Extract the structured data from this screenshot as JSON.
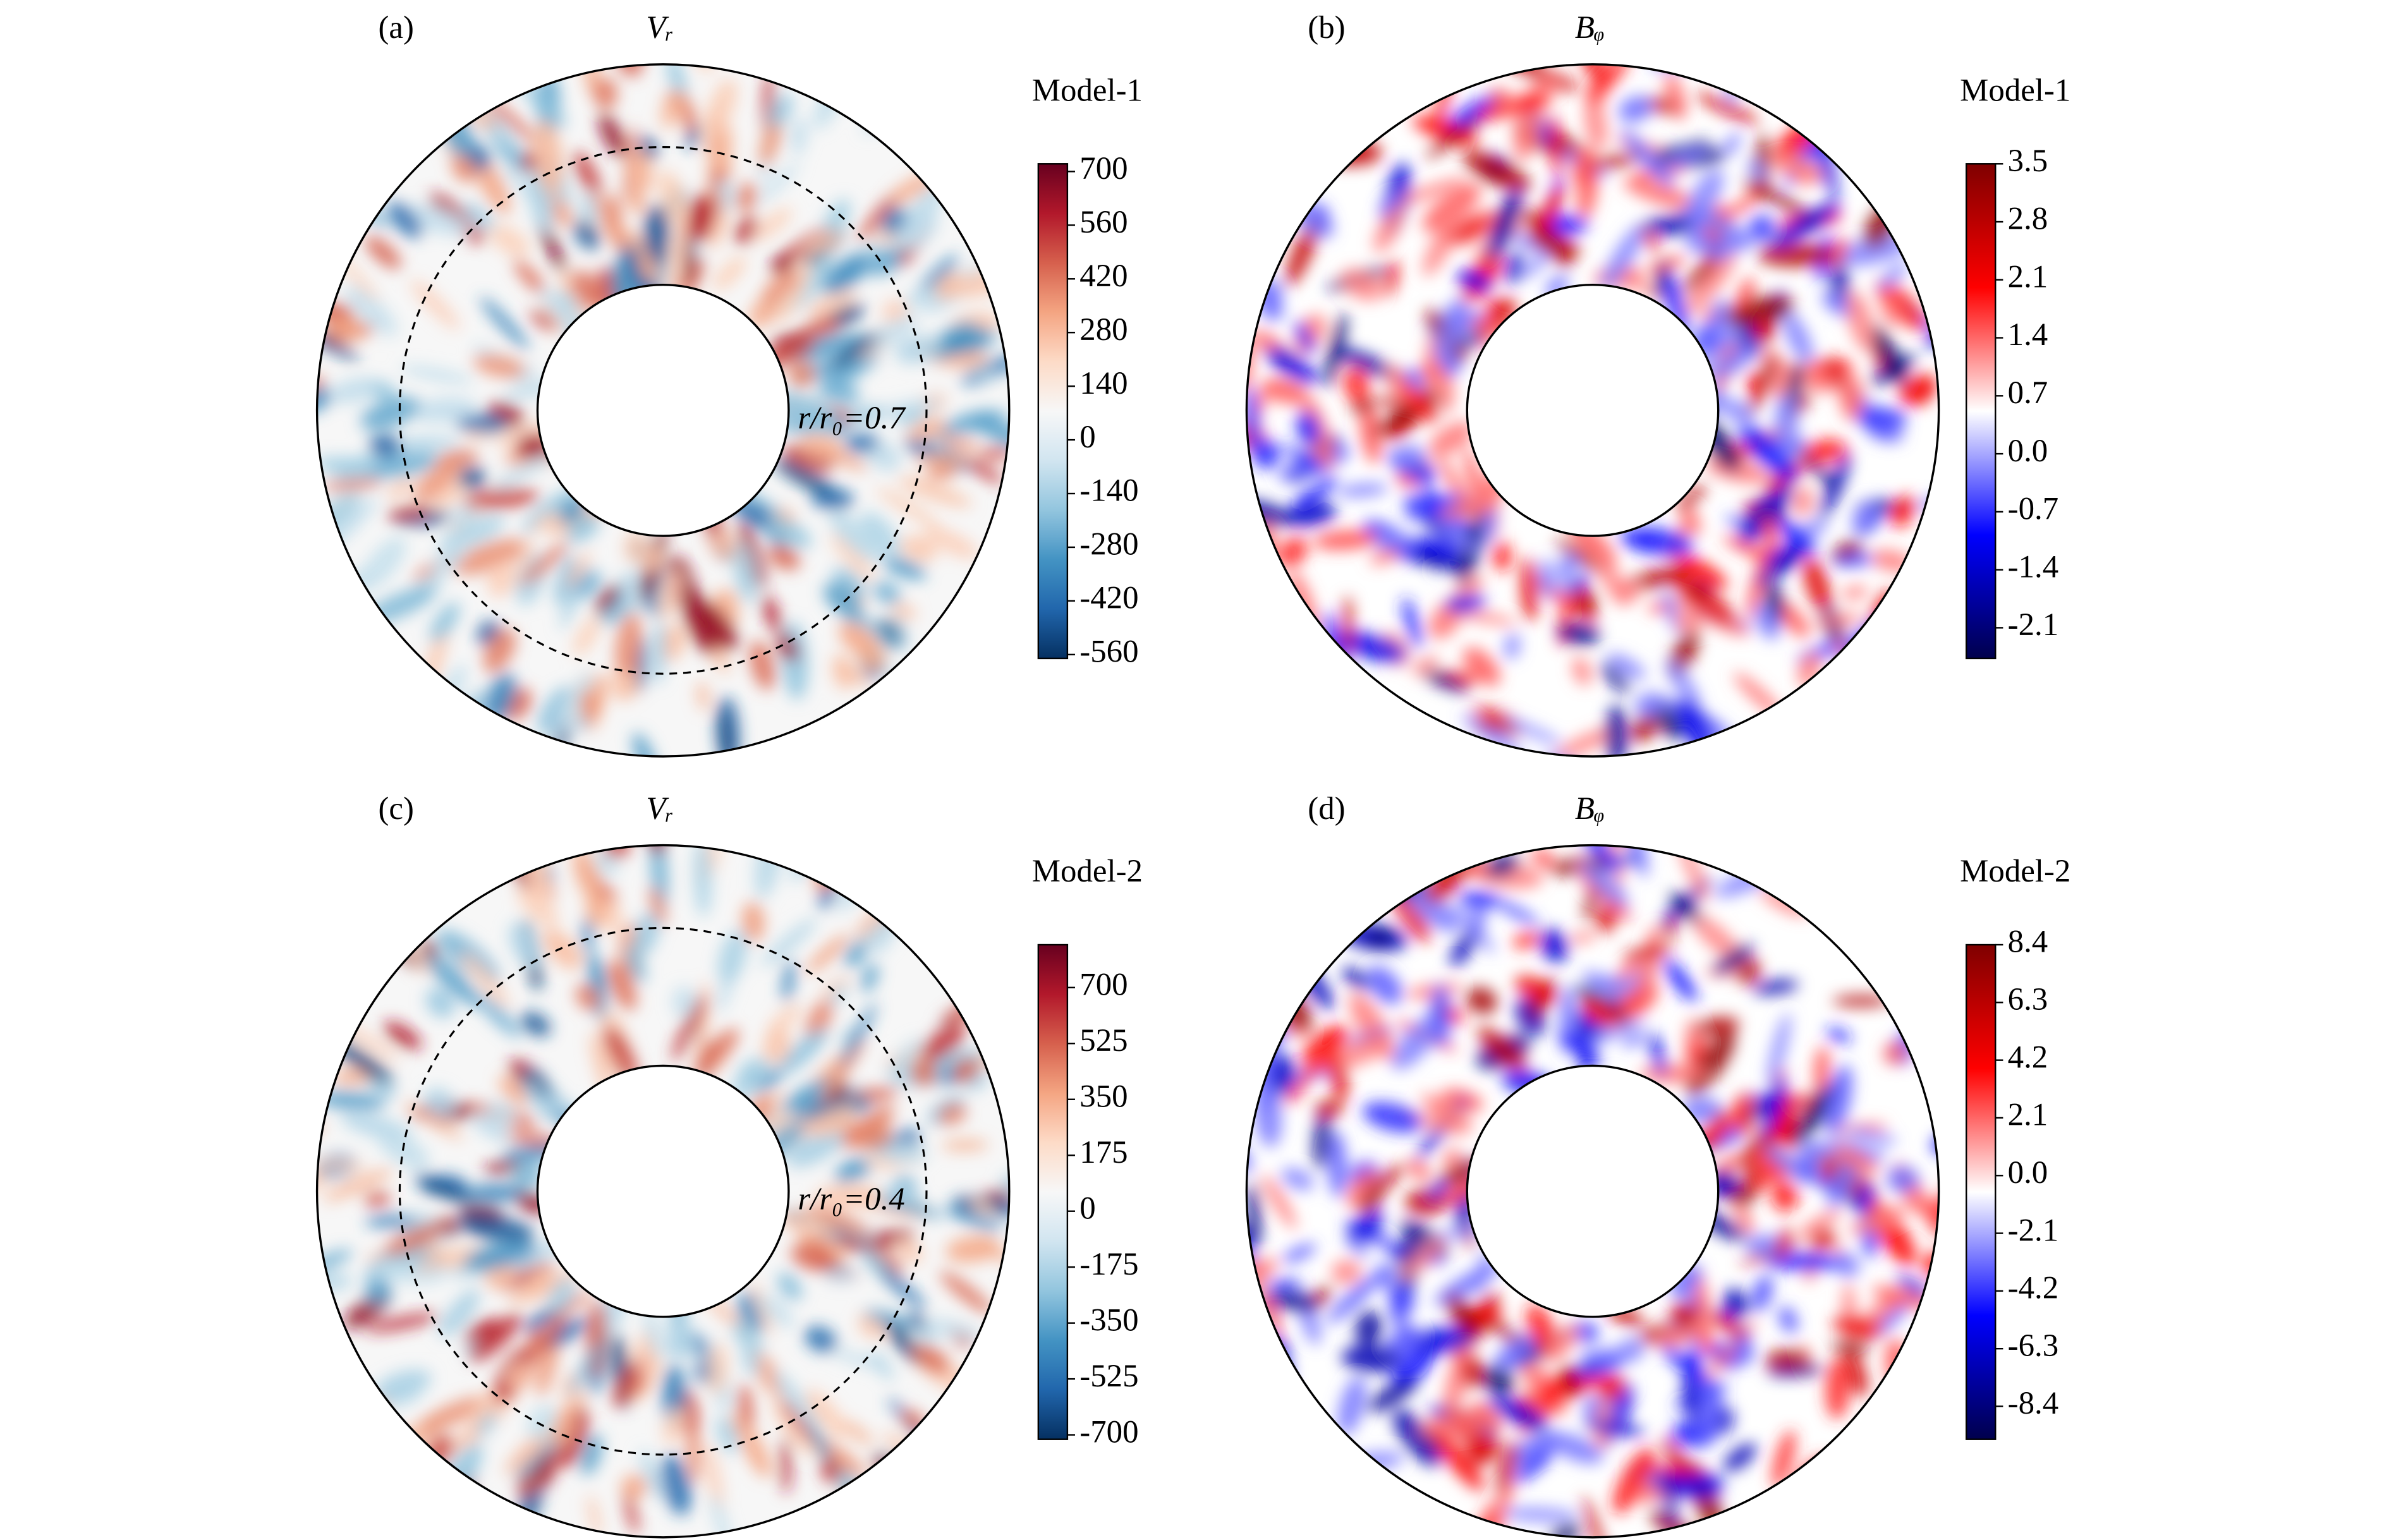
{
  "chart_data": [
    {
      "type": "contour",
      "panel_label": "(a)",
      "title": "Vᵣ",
      "colorbar_label": "Model-1",
      "annotation": "r/r₀=0.7",
      "colormap": "RdBu_r",
      "clim": [
        -570,
        720
      ],
      "cticks": [
        700,
        560,
        420,
        280,
        140,
        0,
        -140,
        -280,
        -420,
        -560
      ]
    },
    {
      "type": "contour",
      "panel_label": "(b)",
      "title": "Bᵩ",
      "colorbar_label": "Model-1",
      "colormap": "seismic",
      "clim": [
        -2.47,
        3.5
      ],
      "cticks": [
        3.5,
        2.8,
        2.1,
        1.4,
        0.7,
        {
          "value": 0,
          "label": "0.0"
        },
        -0.7,
        -1.4,
        -2.1
      ]
    },
    {
      "type": "contour",
      "panel_label": "(c)",
      "title": "Vᵣ",
      "colorbar_label": "Model-2",
      "annotation": "r/r₀=0.4",
      "colormap": "RdBu_r",
      "clim": [
        -714,
        834
      ],
      "cticks": [
        700,
        525,
        350,
        175,
        0,
        -175,
        -350,
        -525,
        -700
      ]
    },
    {
      "type": "contour",
      "panel_label": "(d)",
      "title": "Bᵩ",
      "colorbar_label": "Model-2",
      "colormap": "seismic",
      "clim": [
        -9.6,
        8.4
      ],
      "cticks": [
        8.4,
        6.3,
        4.2,
        2.1,
        {
          "value": 0,
          "label": "0.0"
        },
        -2.1,
        -4.2,
        -6.3,
        -8.4
      ]
    }
  ]
}
